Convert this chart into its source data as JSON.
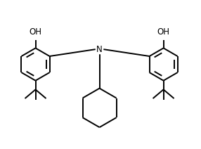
{
  "bg_color": "#ffffff",
  "line_color": "#000000",
  "line_width": 1.4,
  "fig_width": 2.86,
  "fig_height": 2.12,
  "dpi": 100,
  "label_N": "N",
  "label_OH_left": "OH",
  "label_OH_right": "OH",
  "font_size_labels": 8.5
}
